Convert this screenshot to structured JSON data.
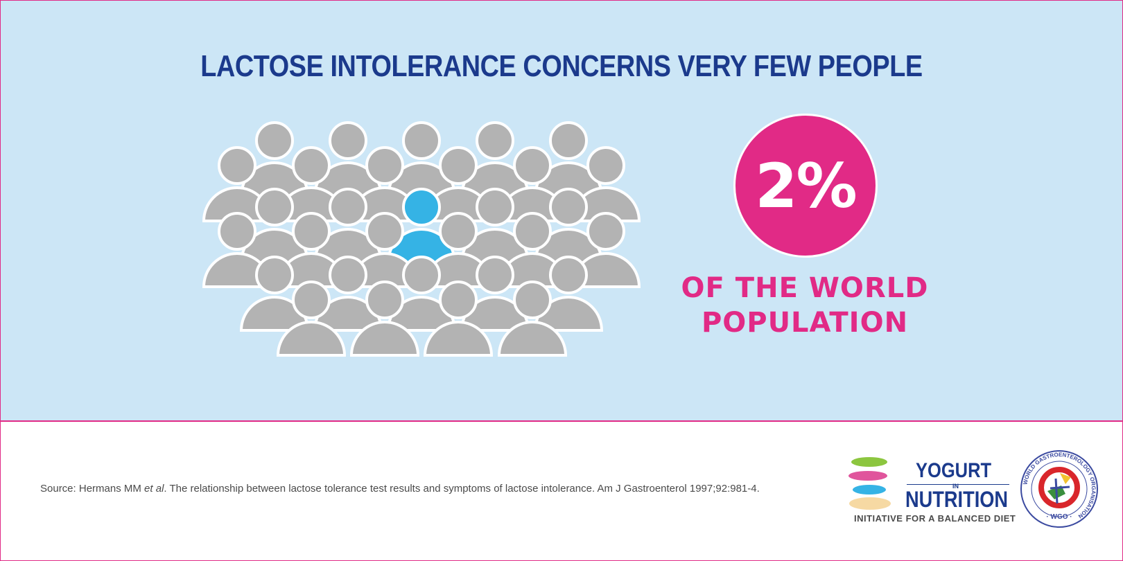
{
  "headline": "LACTOSE INTOLERANCE CONCERNS VERY FEW PEOPLE",
  "stat": {
    "value": "2%",
    "caption_line1": "OF THE WORLD",
    "caption_line2": "POPULATION",
    "fraction": 0.02
  },
  "crowd": {
    "highlighted_color": "#35b3e5",
    "default_color": "#b3b3b3",
    "highlighted_count": 1
  },
  "source": {
    "prefix": "Source: Hermans MM ",
    "italic": "et al",
    "suffix": ". The relationship between lactose tolerance test results and symptoms of lactose intolerance. Am J Gastroenterol 1997;92:981-4."
  },
  "logos": {
    "yogurt_word": "YOGURT",
    "in_word": "IN",
    "nutrition_word": "NUTRITION",
    "tagline": "INITIATIVE FOR A BALANCED DIET",
    "wgo_ring_text": "WORLD GASTROENTEROLOGY ORGANISATION",
    "wgo_abbr": "· WGO ·"
  },
  "colors": {
    "accent_pink": "#e12a86",
    "navy": "#1b3a8c",
    "panel_blue": "#cce6f6"
  }
}
